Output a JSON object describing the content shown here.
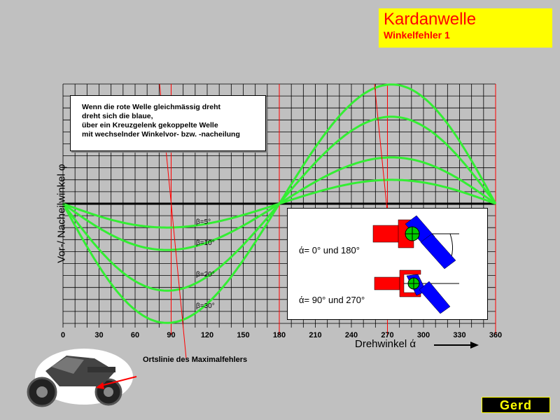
{
  "header": {
    "title": "Kardanwelle",
    "subtitle": "Winkelfehler 1"
  },
  "note": {
    "lines": [
      "Wenn die rote Welle gleichmässig dreht",
      "dreht sich die blaue,",
      "über ein Kreuzgelenk gekoppelte Welle",
      "mit wechselnder Winkelvor- bzw. -nacheilung"
    ]
  },
  "inset": {
    "label_top": "ά= 0° und 180°",
    "label_bottom": "ά= 90° und 270°"
  },
  "annotations": {
    "locus": "Ortslinie des Maximalfehlers"
  },
  "logo": {
    "text": "Gerd"
  },
  "colors": {
    "curve": "#33ee33",
    "axis_lines": "#ff0000",
    "grid": "#000000",
    "title_bg": "#ffff00",
    "title_text": "#ff0000"
  },
  "chart_data": {
    "type": "line",
    "xlabel": "Drehwinkel ά",
    "ylabel": "Vor-/ Nacheilwinkel φ",
    "xlim": [
      0,
      360
    ],
    "x_ticks": [
      0,
      30,
      60,
      90,
      120,
      150,
      180,
      210,
      240,
      270,
      300,
      330,
      360
    ],
    "red_verticals": [
      90,
      180,
      270,
      360
    ],
    "grid": true,
    "series": [
      {
        "name": "β=5°",
        "beta": 5
      },
      {
        "name": "β=10°",
        "beta": 10
      },
      {
        "name": "β=20°",
        "beta": 20
      },
      {
        "name": "β=30°",
        "beta": 30
      }
    ]
  }
}
